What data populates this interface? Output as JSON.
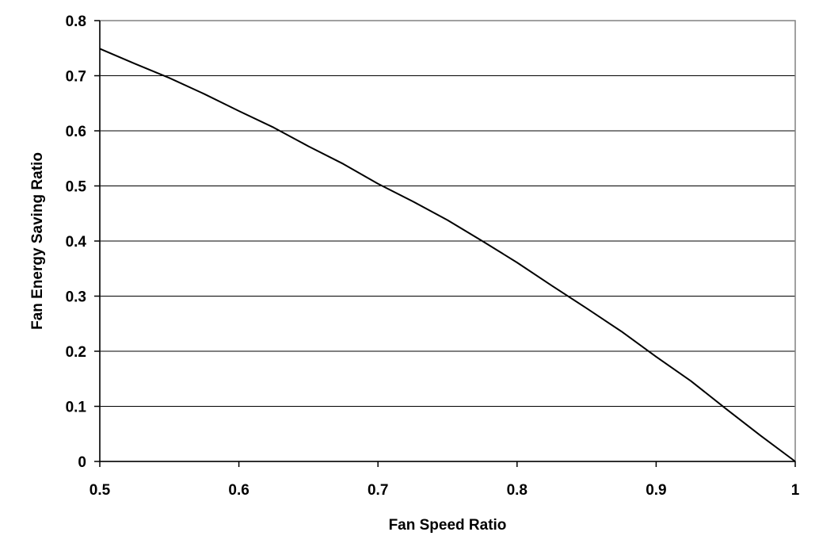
{
  "chart_data": {
    "type": "line",
    "title": "",
    "xlabel": "Fan Speed Ratio",
    "ylabel": "Fan Energy Saving Ratio",
    "xlim": [
      0.5,
      1.0
    ],
    "ylim": [
      0,
      0.8
    ],
    "x_ticks": [
      "0.5",
      "0.6",
      "0.7",
      "0.8",
      "0.9",
      "1"
    ],
    "y_ticks": [
      "0",
      "0.1",
      "0.2",
      "0.3",
      "0.4",
      "0.5",
      "0.6",
      "0.7",
      "0.8"
    ],
    "grid": "horizontal",
    "legend": "none",
    "series": [
      {
        "x": [
          0.5,
          0.525,
          0.55,
          0.575,
          0.6,
          0.625,
          0.65,
          0.675,
          0.7,
          0.725,
          0.75,
          0.775,
          0.8,
          0.825,
          0.85,
          0.875,
          0.9,
          0.925,
          0.95,
          0.975,
          1.0
        ],
        "y": [
          0.749,
          0.722,
          0.696,
          0.667,
          0.636,
          0.606,
          0.572,
          0.54,
          0.504,
          0.472,
          0.438,
          0.4,
          0.361,
          0.319,
          0.278,
          0.236,
          0.19,
          0.146,
          0.096,
          0.047,
          0.0
        ]
      }
    ],
    "colors": {
      "line": "#000000",
      "grid": "#000000",
      "frame": "#808080"
    }
  }
}
